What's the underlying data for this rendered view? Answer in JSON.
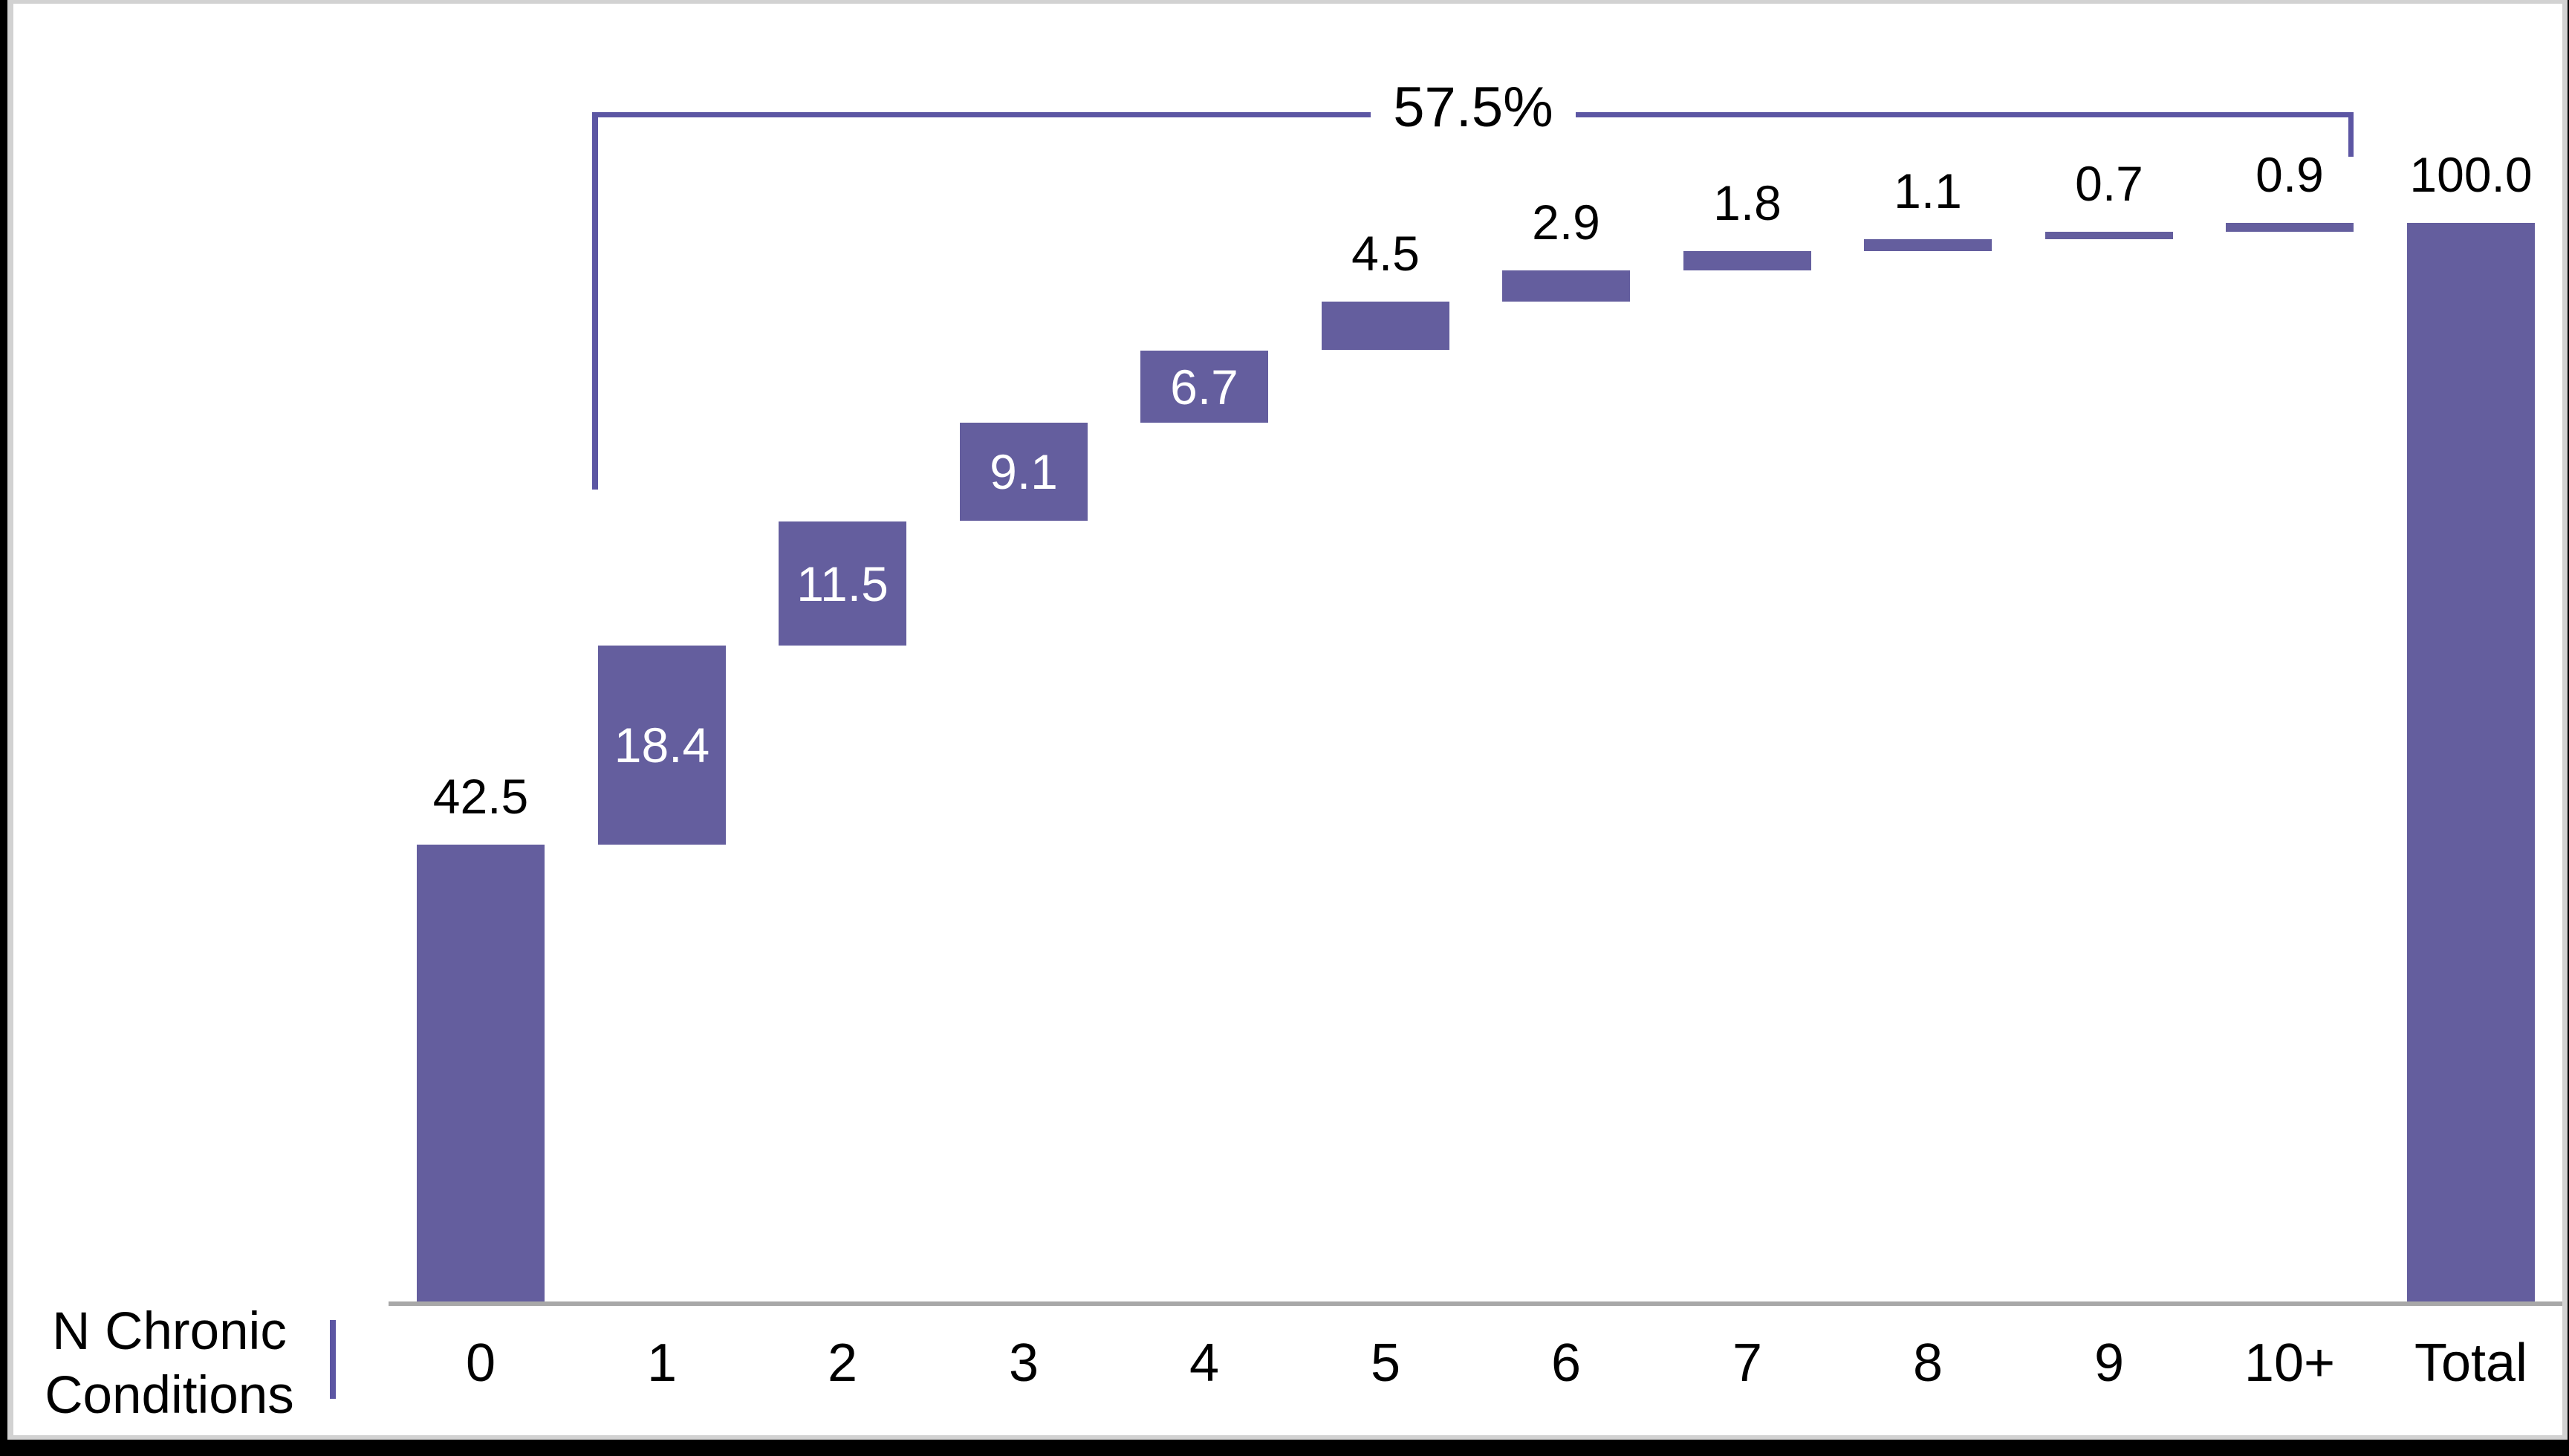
{
  "chart_data": {
    "type": "bar",
    "subtype": "waterfall",
    "categories": [
      "0",
      "1",
      "2",
      "3",
      "4",
      "5",
      "6",
      "7",
      "8",
      "9",
      "10+",
      "Total"
    ],
    "values": [
      42.5,
      18.4,
      11.5,
      9.1,
      6.7,
      4.5,
      2.9,
      1.8,
      1.1,
      0.7,
      0.9,
      100.0
    ],
    "value_labels": [
      "42.5",
      "18.4",
      "11.5",
      "9.1",
      "6.7",
      "4.5",
      "2.9",
      "1.8",
      "1.1",
      "0.7",
      "0.9",
      "100.0"
    ],
    "label_placement": [
      "above",
      "inside",
      "inside",
      "inside",
      "inside",
      "above",
      "above",
      "above",
      "above",
      "above",
      "above",
      "above"
    ],
    "is_total": [
      false,
      false,
      false,
      false,
      false,
      false,
      false,
      false,
      false,
      false,
      false,
      true
    ],
    "xlabel_line1": "N Chronic",
    "xlabel_line2": "Conditions",
    "annotation": {
      "text": "57.5%",
      "spans_categories": [
        "1",
        "10+"
      ]
    },
    "ylim": [
      0,
      100
    ],
    "grid": false,
    "legend": false,
    "colors": {
      "bar": "#645E9E",
      "bracket": "#5C56A3",
      "axis_line": "#A8A8A8",
      "label_inside": "#FFFFFF",
      "label_outside": "#000000",
      "frame_border": "#D2D2D2",
      "page_background": "#000000",
      "plot_background": "#FFFFFF"
    }
  }
}
